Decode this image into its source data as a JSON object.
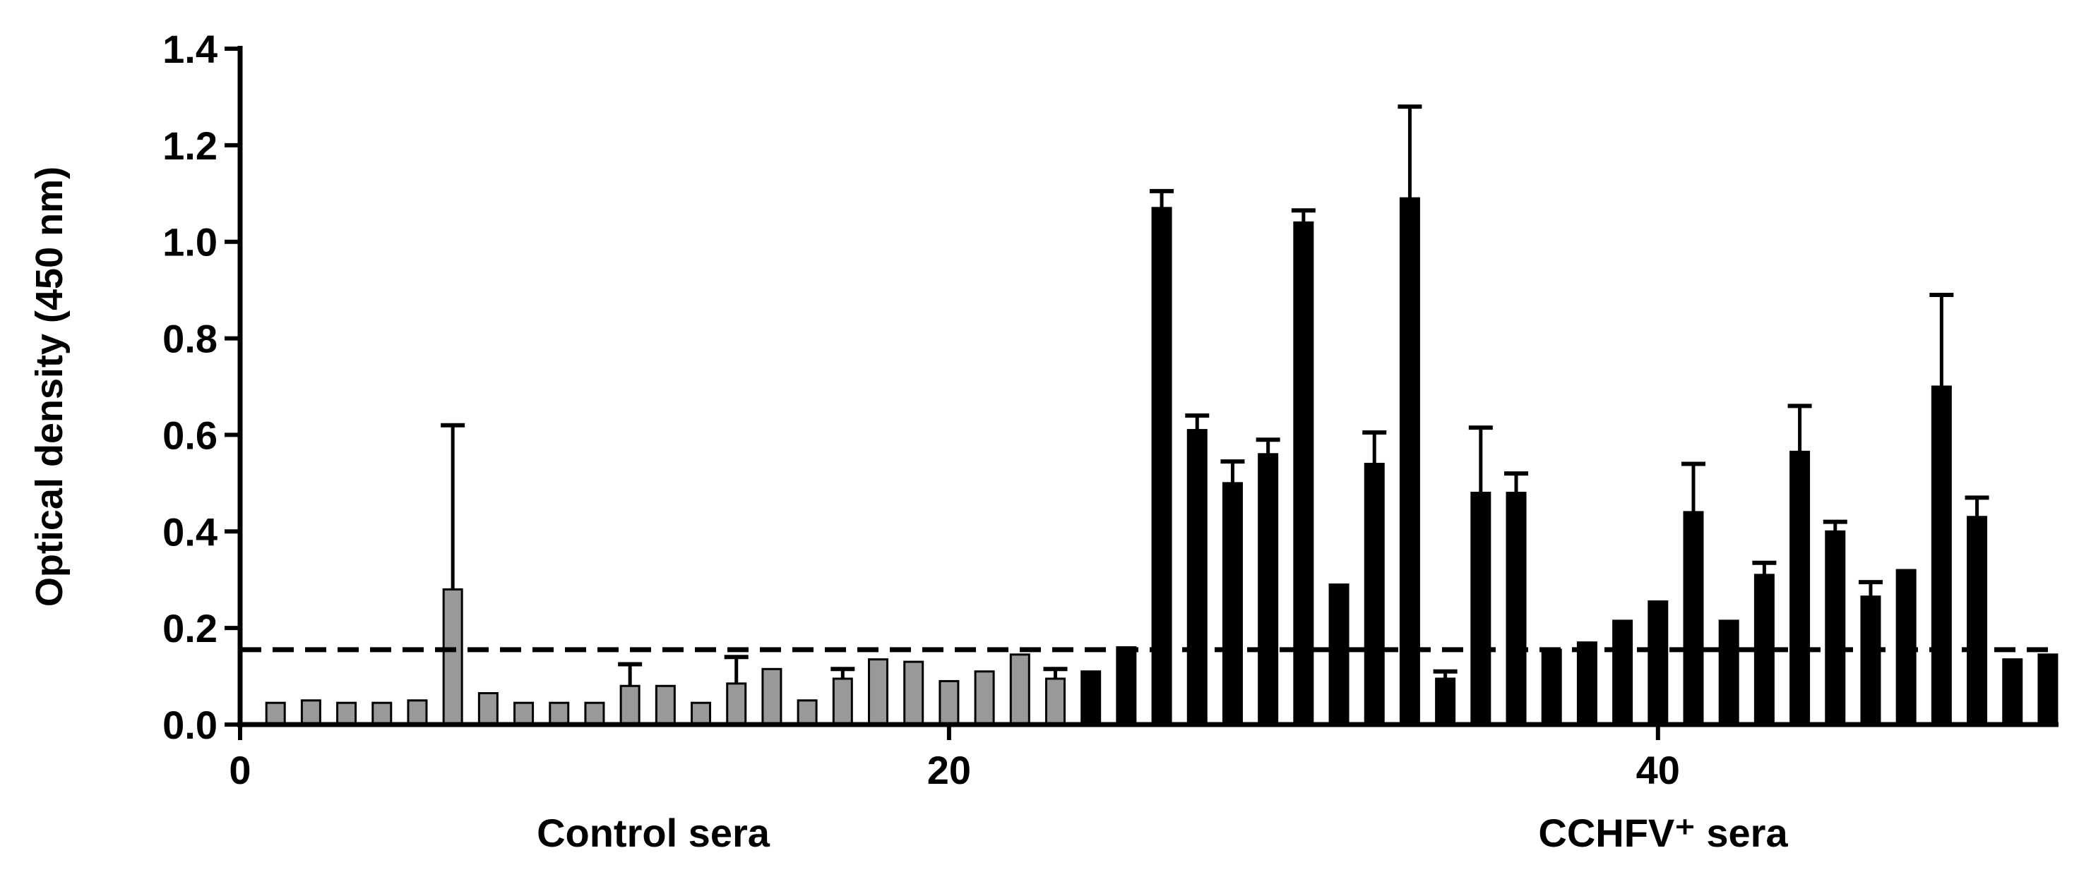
{
  "chart_data": {
    "type": "bar",
    "y_label": "Optical density (450 nm)",
    "group_labels": [
      "Control sera",
      "CCHFV⁺ sera"
    ],
    "xlim": [
      0,
      51.3
    ],
    "xticks": [
      0,
      20,
      40
    ],
    "ylim": [
      0,
      1.4
    ],
    "yticks": [
      {
        "value": 0,
        "label": "0.0"
      },
      0.2,
      0.4,
      0.6,
      0.8,
      {
        "value": 1,
        "label": "1.0"
      },
      1.2,
      1.4
    ],
    "threshold": 0.155,
    "series": [
      {
        "name": "Control sera",
        "color": "#999999",
        "x": [
          1,
          2,
          3,
          4,
          5,
          6,
          7,
          8,
          9,
          10,
          11,
          12,
          13,
          14,
          15,
          16,
          17,
          18,
          19,
          20,
          21,
          22,
          23
        ],
        "values": [
          0.045,
          0.05,
          0.045,
          0.045,
          0.05,
          0.28,
          0.065,
          0.045,
          0.045,
          0.045,
          0.08,
          0.08,
          0.045,
          0.085,
          0.115,
          0.05,
          0.095,
          0.135,
          0.13,
          0.09,
          0.11,
          0.145,
          0.095
        ],
        "errors": [
          null,
          null,
          null,
          null,
          null,
          0.34,
          null,
          null,
          null,
          null,
          0.045,
          null,
          null,
          0.055,
          null,
          null,
          0.02,
          null,
          null,
          null,
          null,
          null,
          0.02
        ]
      },
      {
        "name": "CCHFV⁺ sera",
        "color": "#000000",
        "x": [
          24,
          25,
          26,
          27,
          28,
          29,
          30,
          31,
          32,
          33,
          34,
          35,
          36,
          37,
          38,
          39,
          40,
          41,
          42,
          43,
          44,
          45,
          46,
          47,
          48,
          49,
          50,
          51
        ],
        "values": [
          0.11,
          0.16,
          1.07,
          0.61,
          0.5,
          0.56,
          1.04,
          0.29,
          0.54,
          1.09,
          0.095,
          0.48,
          0.48,
          0.155,
          0.17,
          0.215,
          0.255,
          0.44,
          0.215,
          0.31,
          0.565,
          0.4,
          0.265,
          0.32,
          0.7,
          0.43,
          0.135,
          0.145
        ],
        "errors": [
          null,
          null,
          0.035,
          0.03,
          0.045,
          0.03,
          0.025,
          null,
          0.065,
          0.19,
          0.015,
          0.135,
          0.04,
          null,
          null,
          null,
          null,
          0.1,
          null,
          0.025,
          0.095,
          0.02,
          0.03,
          null,
          0.19,
          0.04,
          null,
          null
        ]
      }
    ]
  }
}
